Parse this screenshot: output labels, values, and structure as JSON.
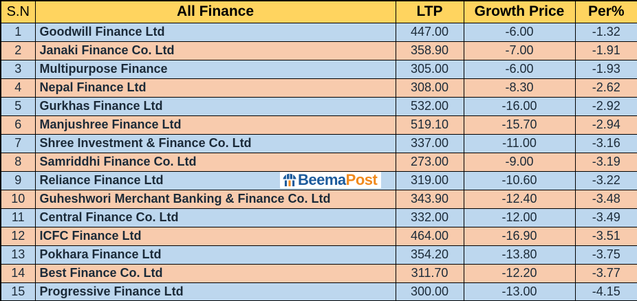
{
  "chart_data": {
    "type": "table",
    "title": "All Finance",
    "columns": [
      "S.N",
      "All Finance",
      "LTP",
      "Growth Price",
      "Per%"
    ],
    "rows": [
      {
        "sn": "1",
        "name": "Goodwill Finance Ltd",
        "ltp": "447.00",
        "growth_price": "-6.00",
        "per_pct": "-1.32"
      },
      {
        "sn": "2",
        "name": "Janaki Finance Co. Ltd",
        "ltp": "358.90",
        "growth_price": "-7.00",
        "per_pct": "-1.91"
      },
      {
        "sn": "3",
        "name": "Multipurpose Finance",
        "ltp": "305.00",
        "growth_price": "-6.00",
        "per_pct": "-1.93"
      },
      {
        "sn": "4",
        "name": "Nepal Finance Ltd",
        "ltp": "308.00",
        "growth_price": "-8.30",
        "per_pct": "-2.62"
      },
      {
        "sn": "5",
        "name": "Gurkhas Finance Ltd",
        "ltp": "532.00",
        "growth_price": "-16.00",
        "per_pct": "-2.92"
      },
      {
        "sn": "6",
        "name": "Manjushree Finance Ltd",
        "ltp": "519.10",
        "growth_price": "-15.70",
        "per_pct": "-2.94"
      },
      {
        "sn": "7",
        "name": "Shree Investment & Finance Co. Ltd",
        "ltp": "337.00",
        "growth_price": "-11.00",
        "per_pct": "-3.16"
      },
      {
        "sn": "8",
        "name": "Samriddhi  Finance Co. Ltd",
        "ltp": "273.00",
        "growth_price": "-9.00",
        "per_pct": "-3.19"
      },
      {
        "sn": "9",
        "name": "Reliance Finance Ltd",
        "ltp": "319.00",
        "growth_price": "-10.60",
        "per_pct": "-3.22"
      },
      {
        "sn": "10",
        "name": "Guheshwori Merchant Banking & Finance Co. Ltd",
        "ltp": "343.90",
        "growth_price": "-12.40",
        "per_pct": "-3.48"
      },
      {
        "sn": "11",
        "name": "Central Finance Co. Ltd",
        "ltp": "332.00",
        "growth_price": "-12.00",
        "per_pct": "-3.49"
      },
      {
        "sn": "12",
        "name": "ICFC Finance Ltd",
        "ltp": "464.00",
        "growth_price": "-16.90",
        "per_pct": "-3.51"
      },
      {
        "sn": "13",
        "name": "Pokhara Finance Ltd",
        "ltp": "354.20",
        "growth_price": "-13.80",
        "per_pct": "-3.75"
      },
      {
        "sn": "14",
        "name": "Best Finance Co. Ltd",
        "ltp": "311.70",
        "growth_price": "-12.20",
        "per_pct": "-3.77"
      },
      {
        "sn": "15",
        "name": "Progressive Finance Ltd",
        "ltp": "300.00",
        "growth_price": "-13.00",
        "per_pct": "-4.15"
      }
    ]
  },
  "logo": {
    "icon": "umbrella-icon",
    "text_blue": "Beema",
    "text_orange": "Post"
  },
  "colors": {
    "header_bg": "#FFD45F",
    "header_text": "#000000",
    "row_blue": "#BDD7EE",
    "row_peach": "#F8CBAD",
    "border": "#000000",
    "text_dark": "#1B2A38",
    "logo_blue": "#1C5B9C",
    "logo_orange": "#F18A1D",
    "logo_bg": "#FFFFFF"
  }
}
